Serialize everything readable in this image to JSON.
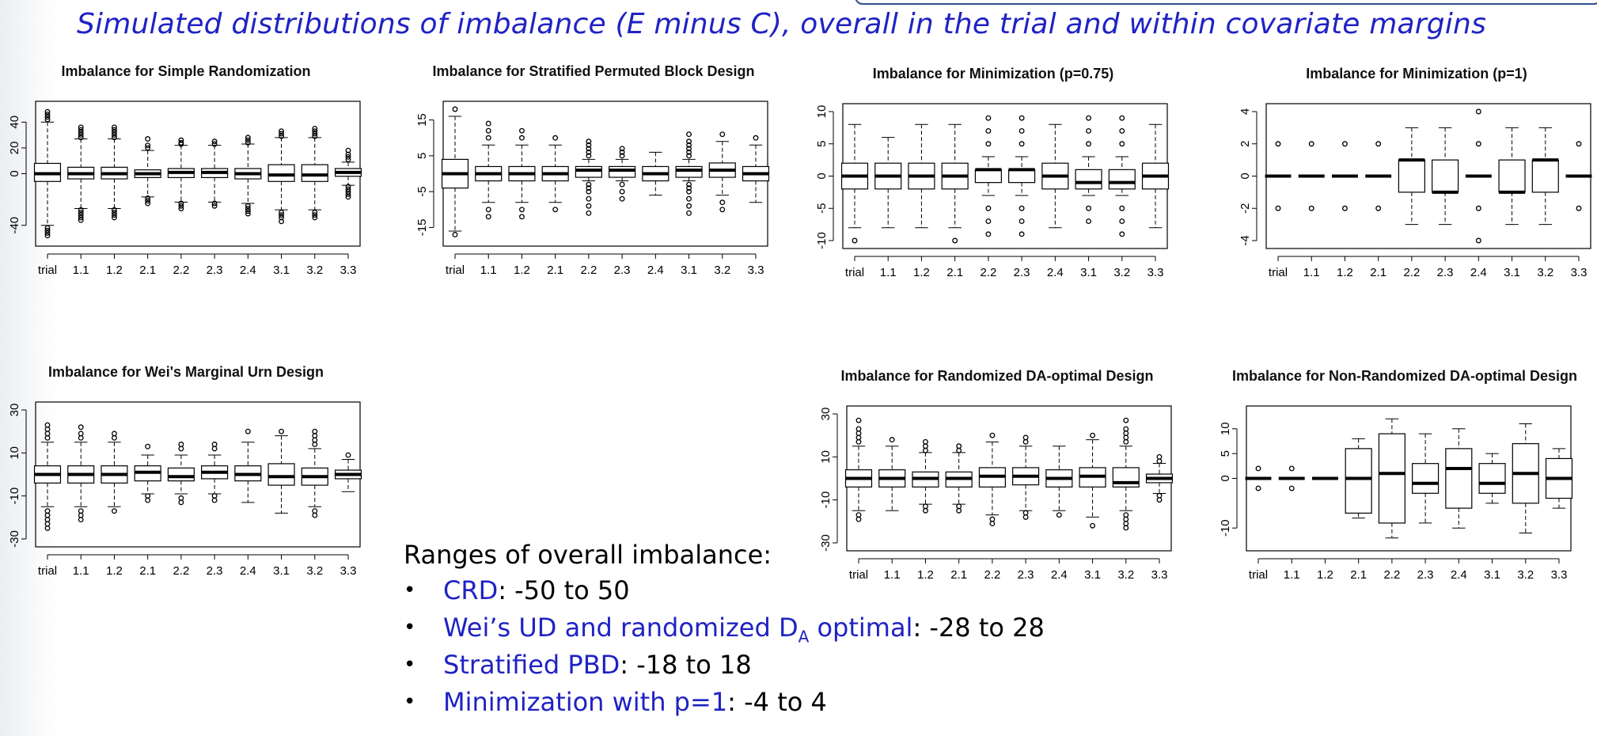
{
  "page": {
    "title": "Simulated distributions of imbalance (E minus C), overall in the trial and within covariate margins",
    "accent_color": "#1f22c4"
  },
  "notes": {
    "heading": "Ranges of overall imbalance:",
    "items": [
      {
        "label": "CRD",
        "label_sub": "",
        "label_suffix": "",
        "value": ": -50 to 50"
      },
      {
        "label": "Wei’s UD and randomized D",
        "label_sub": "A",
        "label_suffix": " optimal",
        "value": ": -28 to 28"
      },
      {
        "label": "Stratified PBD",
        "label_sub": "",
        "label_suffix": "",
        "value": ": -18 to 18"
      },
      {
        "label": "Minimization with p=1",
        "label_sub": "",
        "label_suffix": "",
        "value": ": -4 to 4"
      }
    ]
  },
  "chart_data": [
    {
      "type": "boxplot",
      "title": "Imbalance for Simple Randomization",
      "categories": [
        "trial",
        "1.1",
        "1.2",
        "2.1",
        "2.2",
        "2.3",
        "2.4",
        "3.1",
        "3.2",
        "3.3"
      ],
      "ylim": [
        -50,
        50
      ],
      "yticks": [
        -40,
        0,
        20,
        40
      ],
      "boxes": [
        {
          "lo": -40,
          "q1": -6,
          "med": 0,
          "q3": 8,
          "hi": 40,
          "out": [
            42,
            44,
            46,
            48,
            -42,
            -44,
            -46,
            -48
          ]
        },
        {
          "lo": -27,
          "q1": -4,
          "med": 0,
          "q3": 5,
          "hi": 27,
          "out": [
            28,
            30,
            32,
            34,
            36,
            -28,
            -30,
            -32,
            -34,
            -36
          ]
        },
        {
          "lo": -27,
          "q1": -4,
          "med": 0,
          "q3": 5,
          "hi": 27,
          "out": [
            28,
            30,
            32,
            34,
            36,
            -28,
            -30,
            -32,
            -34
          ]
        },
        {
          "lo": -18,
          "q1": -3,
          "med": 0,
          "q3": 3,
          "hi": 18,
          "out": [
            20,
            22,
            27,
            -19,
            -21,
            -23
          ]
        },
        {
          "lo": -22,
          "q1": -3,
          "med": 1,
          "q3": 4,
          "hi": 22,
          "out": [
            23,
            24,
            26,
            -23,
            -25,
            -27
          ]
        },
        {
          "lo": -22,
          "q1": -3,
          "med": 1,
          "q3": 4,
          "hi": 22,
          "out": [
            23,
            25,
            -23,
            -25
          ]
        },
        {
          "lo": -23,
          "q1": -4,
          "med": 0,
          "q3": 4,
          "hi": 23,
          "out": [
            24,
            26,
            28,
            -25,
            -27,
            -29,
            -31
          ]
        },
        {
          "lo": -28,
          "q1": -6,
          "med": -1,
          "q3": 7,
          "hi": 28,
          "out": [
            29,
            31,
            33,
            -30,
            -32,
            -34,
            -37
          ]
        },
        {
          "lo": -28,
          "q1": -6,
          "med": -1,
          "q3": 7,
          "hi": 28,
          "out": [
            29,
            31,
            33,
            35,
            -30,
            -32,
            -34
          ]
        },
        {
          "lo": -9,
          "q1": -2,
          "med": 1,
          "q3": 4,
          "hi": 9,
          "out": [
            11,
            13,
            15,
            18,
            -10,
            -12,
            -14,
            -16,
            -18
          ]
        }
      ]
    },
    {
      "type": "boxplot",
      "title": "Imbalance for Stratified Permuted Block Design",
      "categories": [
        "trial",
        "1.1",
        "1.2",
        "2.1",
        "2.2",
        "2.3",
        "2.4",
        "3.1",
        "3.2",
        "3.3"
      ],
      "ylim": [
        -18,
        18
      ],
      "yticks": [
        -15,
        -5,
        5,
        15
      ],
      "boxes": [
        {
          "lo": -16,
          "q1": -4,
          "med": 0,
          "q3": 4,
          "hi": 16,
          "out": [
            18,
            -17
          ]
        },
        {
          "lo": -8,
          "q1": -2,
          "med": 0,
          "q3": 2,
          "hi": 8,
          "out": [
            10,
            12,
            14,
            -10,
            -12
          ]
        },
        {
          "lo": -8,
          "q1": -2,
          "med": 0,
          "q3": 2,
          "hi": 8,
          "out": [
            10,
            12,
            -10,
            -12
          ]
        },
        {
          "lo": -8,
          "q1": -2,
          "med": 0,
          "q3": 2,
          "hi": 8,
          "out": [
            10,
            -10
          ]
        },
        {
          "lo": -2,
          "q1": -1,
          "med": 1,
          "q3": 2,
          "hi": 4,
          "out": [
            5,
            6,
            7,
            8,
            9,
            -3,
            -4,
            -5,
            -7,
            -9,
            -11
          ]
        },
        {
          "lo": -2,
          "q1": -1,
          "med": 1,
          "q3": 2,
          "hi": 4,
          "out": [
            5,
            6,
            7,
            -3,
            -5,
            -7
          ]
        },
        {
          "lo": -6,
          "q1": -2,
          "med": 0,
          "q3": 2,
          "hi": 6,
          "out": []
        },
        {
          "lo": -2,
          "q1": -1,
          "med": 1,
          "q3": 2,
          "hi": 4,
          "out": [
            5,
            6,
            7,
            8,
            9,
            11,
            -3,
            -4,
            -5,
            -7,
            -9,
            -11
          ]
        },
        {
          "lo": -6,
          "q1": -1,
          "med": 1,
          "q3": 3,
          "hi": 9,
          "out": [
            11,
            -8,
            -10
          ]
        },
        {
          "lo": -8,
          "q1": -2,
          "med": 0,
          "q3": 2,
          "hi": 8,
          "out": [
            10
          ]
        }
      ]
    },
    {
      "type": "boxplot",
      "title": "Imbalance for Minimization (p=0.75)",
      "categories": [
        "trial",
        "1.1",
        "1.2",
        "2.1",
        "2.2",
        "2.3",
        "2.4",
        "3.1",
        "3.2",
        "3.3"
      ],
      "ylim": [
        -10,
        10
      ],
      "yticks": [
        -10,
        -5,
        0,
        5,
        10
      ],
      "boxes": [
        {
          "lo": -8,
          "q1": -2,
          "med": 0,
          "q3": 2,
          "hi": 8,
          "out": [
            -10
          ]
        },
        {
          "lo": -8,
          "q1": -2,
          "med": 0,
          "q3": 2,
          "hi": 6,
          "out": []
        },
        {
          "lo": -8,
          "q1": -2,
          "med": 0,
          "q3": 2,
          "hi": 8,
          "out": []
        },
        {
          "lo": -8,
          "q1": -2,
          "med": 0,
          "q3": 2,
          "hi": 8,
          "out": [
            -10
          ]
        },
        {
          "lo": -3,
          "q1": -1,
          "med": 1,
          "q3": 1,
          "hi": 3,
          "out": [
            5,
            7,
            9,
            -5,
            -7,
            -9
          ]
        },
        {
          "lo": -3,
          "q1": -1,
          "med": 1,
          "q3": 1,
          "hi": 3,
          "out": [
            5,
            7,
            9,
            -5,
            -7,
            -9
          ]
        },
        {
          "lo": -8,
          "q1": -2,
          "med": 0,
          "q3": 2,
          "hi": 8,
          "out": []
        },
        {
          "lo": -3,
          "q1": -2,
          "med": -1,
          "q3": 1,
          "hi": 3,
          "out": [
            5,
            7,
            9,
            -5,
            -7
          ]
        },
        {
          "lo": -3,
          "q1": -2,
          "med": -1,
          "q3": 1,
          "hi": 3,
          "out": [
            5,
            7,
            9,
            -5,
            -7,
            -9
          ]
        },
        {
          "lo": -8,
          "q1": -2,
          "med": 0,
          "q3": 2,
          "hi": 8,
          "out": []
        }
      ]
    },
    {
      "type": "boxplot",
      "title": "Imbalance for Minimization (p=1)",
      "categories": [
        "trial",
        "1.1",
        "1.2",
        "2.1",
        "2.2",
        "2.3",
        "2.4",
        "3.1",
        "3.2",
        "3.3"
      ],
      "ylim": [
        -4,
        4
      ],
      "yticks": [
        -4,
        -2,
        0,
        2,
        4
      ],
      "boxes": [
        {
          "lo": 0,
          "q1": 0,
          "med": 0,
          "q3": 0,
          "hi": 0,
          "out": [
            2,
            -2
          ]
        },
        {
          "lo": 0,
          "q1": 0,
          "med": 0,
          "q3": 0,
          "hi": 0,
          "out": [
            2,
            -2
          ]
        },
        {
          "lo": 0,
          "q1": 0,
          "med": 0,
          "q3": 0,
          "hi": 0,
          "out": [
            2,
            -2
          ]
        },
        {
          "lo": 0,
          "q1": 0,
          "med": 0,
          "q3": 0,
          "hi": 0,
          "out": [
            2,
            -2
          ]
        },
        {
          "lo": -3,
          "q1": -1,
          "med": 1,
          "q3": 1,
          "hi": 3,
          "out": []
        },
        {
          "lo": -3,
          "q1": -1,
          "med": -1,
          "q3": 1,
          "hi": 3,
          "out": []
        },
        {
          "lo": 0,
          "q1": 0,
          "med": 0,
          "q3": 0,
          "hi": 0,
          "out": [
            2,
            4,
            -2,
            -4
          ]
        },
        {
          "lo": -3,
          "q1": -1,
          "med": -1,
          "q3": 1,
          "hi": 3,
          "out": []
        },
        {
          "lo": -3,
          "q1": -1,
          "med": 1,
          "q3": 1,
          "hi": 3,
          "out": []
        },
        {
          "lo": 0,
          "q1": 0,
          "med": 0,
          "q3": 0,
          "hi": 0,
          "out": [
            2,
            -2
          ]
        }
      ]
    },
    {
      "type": "boxplot",
      "title": "Imbalance for Wei's Marginal Urn Design",
      "categories": [
        "trial",
        "1.1",
        "1.2",
        "2.1",
        "2.2",
        "2.3",
        "2.4",
        "3.1",
        "3.2",
        "3.3"
      ],
      "ylim": [
        -30,
        30
      ],
      "yticks": [
        -30,
        -10,
        10,
        30
      ],
      "boxes": [
        {
          "lo": -15,
          "q1": -4,
          "med": 0,
          "q3": 4,
          "hi": 15,
          "out": [
            17,
            19,
            21,
            23,
            -17,
            -19,
            -21,
            -23,
            -25
          ]
        },
        {
          "lo": -15,
          "q1": -4,
          "med": 0,
          "q3": 4,
          "hi": 15,
          "out": [
            17,
            19,
            22,
            -17,
            -19,
            -21
          ]
        },
        {
          "lo": -15,
          "q1": -4,
          "med": 0,
          "q3": 4,
          "hi": 15,
          "out": [
            17,
            19,
            -17
          ]
        },
        {
          "lo": -9,
          "q1": -3,
          "med": 1,
          "q3": 4,
          "hi": 9,
          "out": [
            13,
            -10,
            -12
          ]
        },
        {
          "lo": -9,
          "q1": -3,
          "med": -1,
          "q3": 3,
          "hi": 9,
          "out": [
            12,
            14,
            -11,
            -13
          ]
        },
        {
          "lo": -9,
          "q1": -2,
          "med": 1,
          "q3": 4,
          "hi": 9,
          "out": [
            12,
            14,
            -10,
            -12
          ]
        },
        {
          "lo": -13,
          "q1": -3,
          "med": 0,
          "q3": 4,
          "hi": 15,
          "out": [
            20
          ]
        },
        {
          "lo": -18,
          "q1": -5,
          "med": -1,
          "q3": 5,
          "hi": 18,
          "out": [
            20
          ]
        },
        {
          "lo": -15,
          "q1": -5,
          "med": -1,
          "q3": 3,
          "hi": 12,
          "out": [
            14,
            16,
            18,
            20,
            -17,
            -19
          ]
        },
        {
          "lo": -8,
          "q1": -2,
          "med": 0,
          "q3": 2,
          "hi": 7,
          "out": [
            9
          ]
        }
      ]
    },
    {
      "type": "boxplot",
      "title": "Imbalance for Randomized DA-optimal Design",
      "categories": [
        "trial",
        "1.1",
        "1.2",
        "2.1",
        "2.2",
        "2.3",
        "2.4",
        "3.1",
        "3.2",
        "3.3"
      ],
      "ylim": [
        -30,
        30
      ],
      "yticks": [
        -30,
        -10,
        10,
        30
      ],
      "boxes": [
        {
          "lo": -15,
          "q1": -4,
          "med": 0,
          "q3": 4,
          "hi": 15,
          "out": [
            17,
            19,
            21,
            23,
            27,
            -17,
            -19
          ]
        },
        {
          "lo": -15,
          "q1": -4,
          "med": 0,
          "q3": 4,
          "hi": 15,
          "out": [
            18
          ]
        },
        {
          "lo": -12,
          "q1": -4,
          "med": 0,
          "q3": 3,
          "hi": 12,
          "out": [
            13,
            15,
            17,
            -13,
            -15
          ]
        },
        {
          "lo": -12,
          "q1": -4,
          "med": 0,
          "q3": 3,
          "hi": 12,
          "out": [
            13,
            15,
            -13,
            -15
          ]
        },
        {
          "lo": -17,
          "q1": -4,
          "med": 1,
          "q3": 5,
          "hi": 17,
          "out": [
            20,
            -19,
            -21
          ]
        },
        {
          "lo": -15,
          "q1": -3,
          "med": 1,
          "q3": 5,
          "hi": 15,
          "out": [
            17,
            19,
            -16,
            -18
          ]
        },
        {
          "lo": -15,
          "q1": -4,
          "med": 0,
          "q3": 4,
          "hi": 15,
          "out": [
            -17
          ]
        },
        {
          "lo": -18,
          "q1": -4,
          "med": 1,
          "q3": 5,
          "hi": 18,
          "out": [
            20,
            -22
          ]
        },
        {
          "lo": -15,
          "q1": -4,
          "med": -2,
          "q3": 5,
          "hi": 15,
          "out": [
            17,
            19,
            21,
            23,
            27,
            -17,
            -19,
            -21,
            -23
          ]
        },
        {
          "lo": -7,
          "q1": -2,
          "med": 0,
          "q3": 2,
          "hi": 7,
          "out": [
            8,
            10,
            -8,
            -10
          ]
        }
      ]
    },
    {
      "type": "boxplot",
      "title": "Imbalance for Non-Randomized DA-optimal Design",
      "categories": [
        "trial",
        "1.1",
        "1.2",
        "2.1",
        "2.2",
        "2.3",
        "2.4",
        "3.1",
        "3.2",
        "3.3"
      ],
      "ylim": [
        -13,
        13
      ],
      "yticks": [
        -10,
        0,
        5,
        10
      ],
      "boxes": [
        {
          "lo": 0,
          "q1": 0,
          "med": 0,
          "q3": 0,
          "hi": 0,
          "out": [
            2,
            -2
          ]
        },
        {
          "lo": 0,
          "q1": 0,
          "med": 0,
          "q3": 0,
          "hi": 0,
          "out": [
            2,
            -2
          ]
        },
        {
          "lo": 0,
          "q1": 0,
          "med": 0,
          "q3": 0,
          "hi": 0,
          "out": []
        },
        {
          "lo": -8,
          "q1": -7,
          "med": 0,
          "q3": 6,
          "hi": 8,
          "out": []
        },
        {
          "lo": -12,
          "q1": -9,
          "med": 1,
          "q3": 9,
          "hi": 12,
          "out": []
        },
        {
          "lo": -9,
          "q1": -3,
          "med": -1,
          "q3": 3,
          "hi": 9,
          "out": []
        },
        {
          "lo": -10,
          "q1": -6,
          "med": 2,
          "q3": 6,
          "hi": 10,
          "out": []
        },
        {
          "lo": -5,
          "q1": -3,
          "med": -1,
          "q3": 3,
          "hi": 5,
          "out": []
        },
        {
          "lo": -11,
          "q1": -5,
          "med": 1,
          "q3": 7,
          "hi": 11,
          "out": []
        },
        {
          "lo": -6,
          "q1": -4,
          "med": 0,
          "q3": 4,
          "hi": 6,
          "out": []
        }
      ]
    }
  ]
}
